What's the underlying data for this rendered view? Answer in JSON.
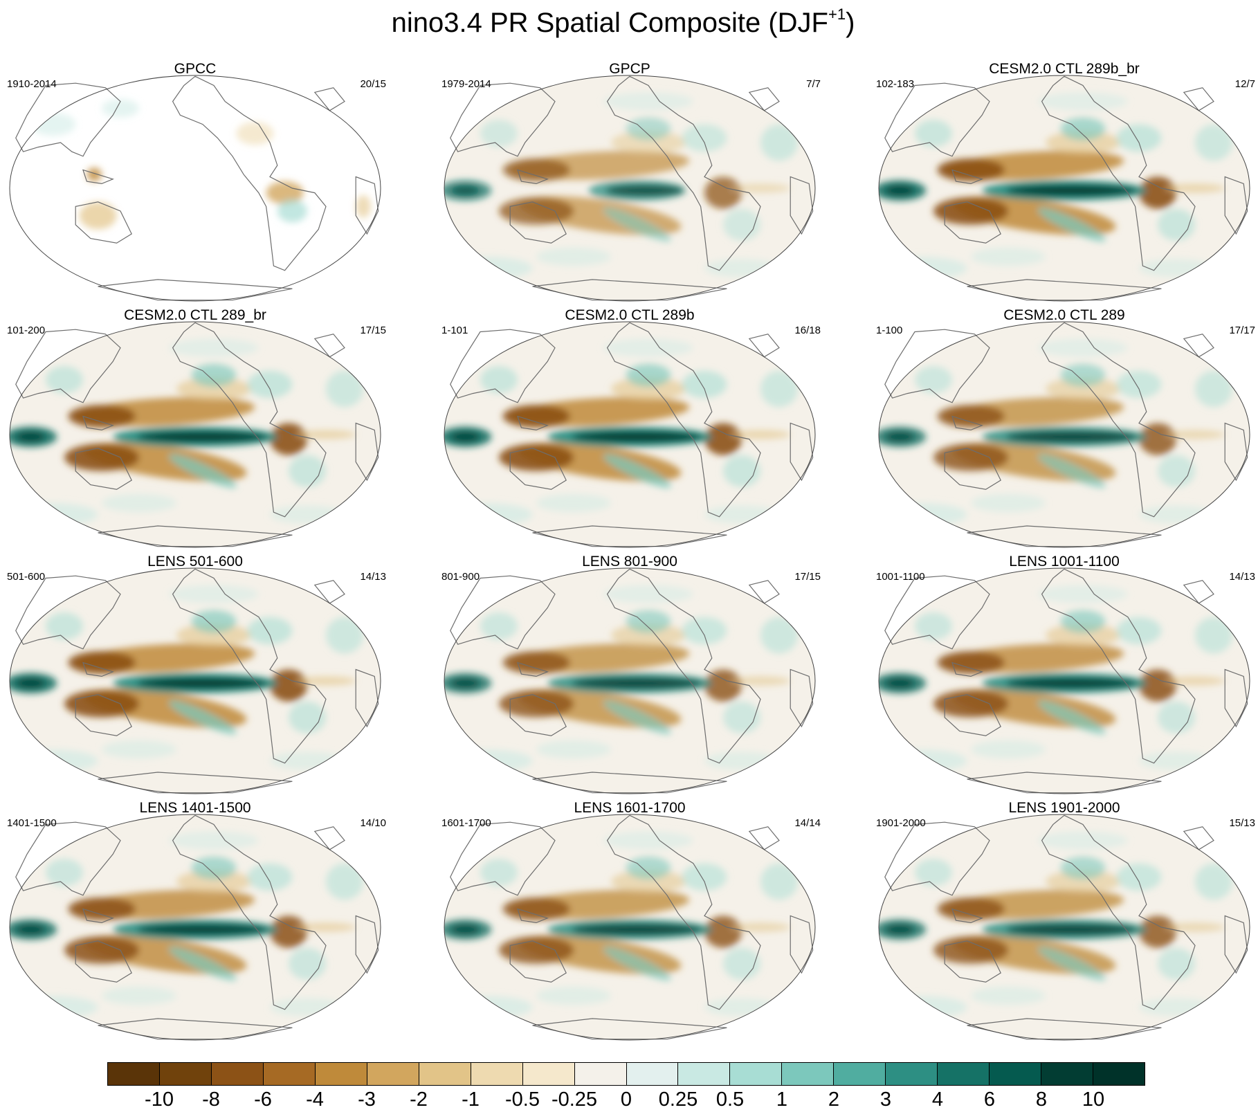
{
  "title": {
    "main": "nino3.4 PR Spatial Composite (DJF",
    "sup": "+1",
    "close": ")"
  },
  "panels": [
    {
      "title": "GPCC",
      "years": "1910-2014",
      "ratio": "20/15",
      "variant": "land",
      "strength": 0.35
    },
    {
      "title": "GPCP",
      "years": "1979-2014",
      "ratio": "7/7",
      "variant": "obs",
      "strength": 0.8
    },
    {
      "title": "CESM2.0 CTL 289b_br",
      "years": "102-183",
      "ratio": "12/7",
      "variant": "model",
      "strength": 1.0
    },
    {
      "title": "CESM2.0 CTL 289_br",
      "years": "101-200",
      "ratio": "17/15",
      "variant": "model",
      "strength": 1.0
    },
    {
      "title": "CESM2.0 CTL 289b",
      "years": "1-101",
      "ratio": "16/18",
      "variant": "model",
      "strength": 1.0
    },
    {
      "title": "CESM2.0 CTL 289",
      "years": "1-100",
      "ratio": "17/17",
      "variant": "model",
      "strength": 0.9
    },
    {
      "title": "LENS 501-600",
      "years": "501-600",
      "ratio": "14/13",
      "variant": "lens",
      "strength": 1.0
    },
    {
      "title": "LENS 801-900",
      "years": "801-900",
      "ratio": "17/15",
      "variant": "lens",
      "strength": 0.9
    },
    {
      "title": "LENS 1001-1100",
      "years": "1001-1100",
      "ratio": "14/13",
      "variant": "lens",
      "strength": 0.95
    },
    {
      "title": "LENS 1401-1500",
      "years": "1401-1500",
      "ratio": "14/10",
      "variant": "lens",
      "strength": 0.95
    },
    {
      "title": "LENS 1601-1700",
      "years": "1601-1700",
      "ratio": "14/14",
      "variant": "lens",
      "strength": 0.9
    },
    {
      "title": "LENS 1901-2000",
      "years": "1901-2000",
      "ratio": "15/13",
      "variant": "lens",
      "strength": 0.9
    }
  ],
  "colorbar": {
    "labels": [
      "-10",
      "-8",
      "-6",
      "-4",
      "-3",
      "-2",
      "-1",
      "-0.5",
      "-0.25",
      "0",
      "0.25",
      "0.5",
      "1",
      "2",
      "3",
      "4",
      "6",
      "8",
      "10"
    ],
    "colors": [
      "#5a3408",
      "#70420c",
      "#8c5216",
      "#a66a24",
      "#bf8a3a",
      "#d2a65e",
      "#e2c488",
      "#eedab0",
      "#f5e8cc",
      "#f4f1ea",
      "#e3f0ee",
      "#c9e9e3",
      "#a8ddd4",
      "#7cc8bc",
      "#50ada0",
      "#2d8f83",
      "#157266",
      "#055a4f",
      "#023d33",
      "#003229"
    ]
  }
}
